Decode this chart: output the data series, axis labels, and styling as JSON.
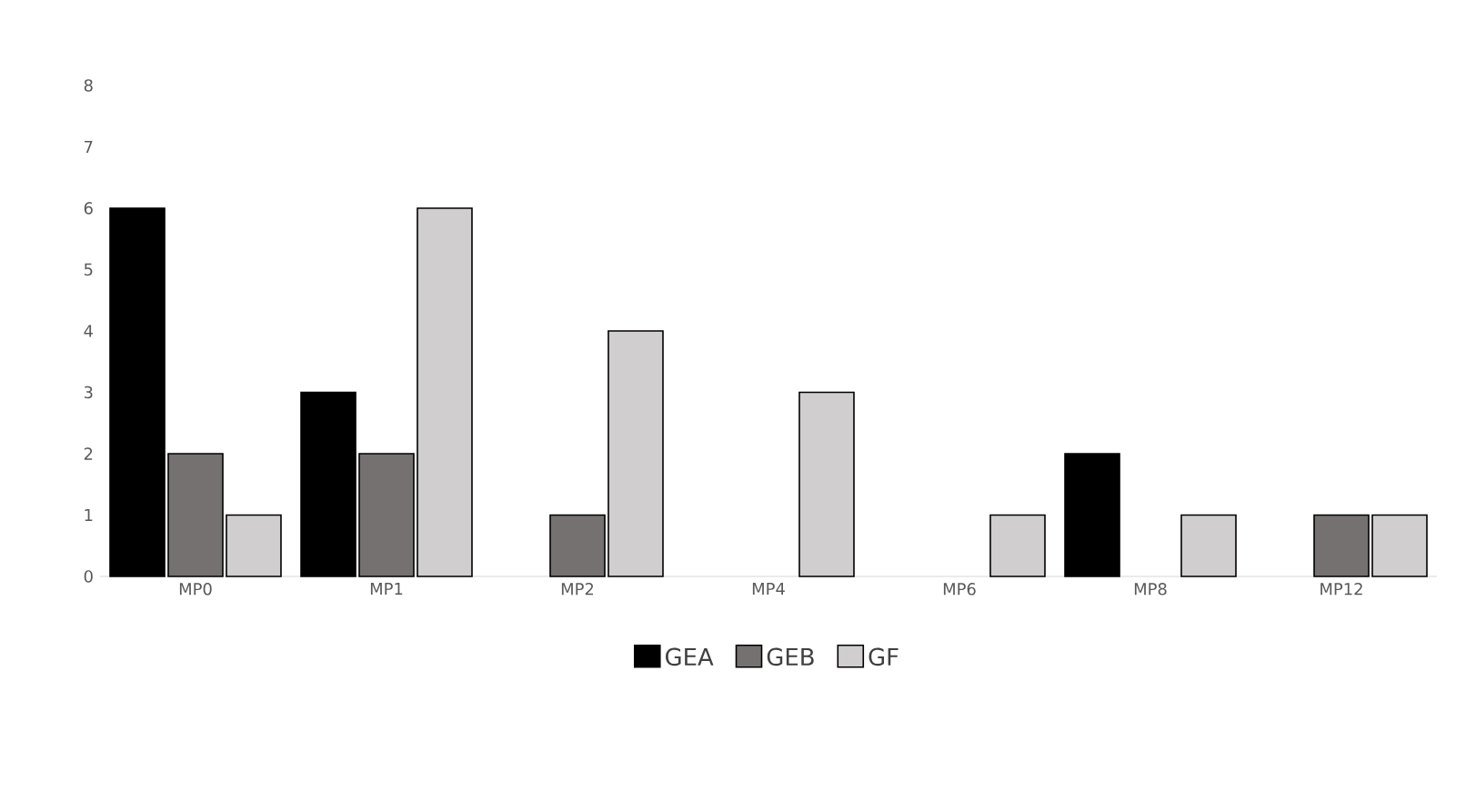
{
  "chart_data": {
    "type": "bar",
    "categories": [
      "MP0",
      "MP1",
      "MP2",
      "MP4",
      "MP6",
      "MP8",
      "MP12"
    ],
    "series": [
      {
        "name": "GEA",
        "color": "#000000",
        "values": [
          6,
          3,
          0,
          0,
          0,
          2,
          0
        ]
      },
      {
        "name": "GEB",
        "color": "#767171",
        "values": [
          2,
          2,
          1,
          0,
          0,
          0,
          1
        ]
      },
      {
        "name": "GF",
        "color": "#d0cece",
        "values": [
          1,
          6,
          4,
          3,
          1,
          1,
          1
        ]
      }
    ],
    "ylim": [
      0,
      8
    ],
    "yticks": [
      0,
      1,
      2,
      3,
      4,
      5,
      6,
      7,
      8
    ],
    "grid": false,
    "legend": "bottom"
  }
}
